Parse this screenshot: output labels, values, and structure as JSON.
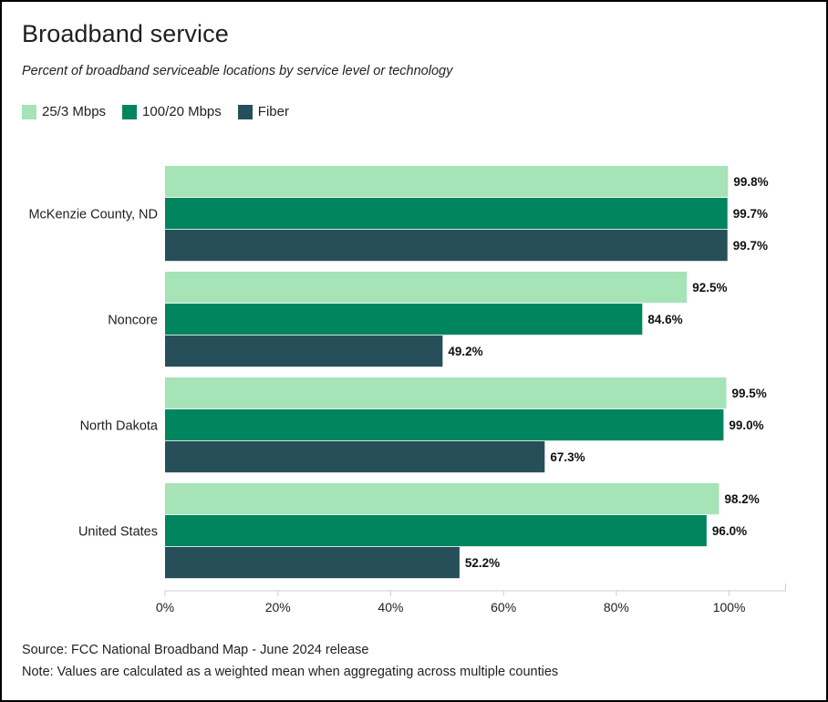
{
  "title": "Broadband service",
  "subtitle": "Percent of broadband serviceable locations by service level or technology",
  "colors": {
    "s25_3": "#a6e3b7",
    "s100_20": "#00855f",
    "fiber": "#264f59",
    "axis": "#cfcfcf"
  },
  "chart_data": {
    "type": "bar",
    "orientation": "horizontal",
    "categories": [
      "McKenzie County, ND",
      "Noncore",
      "North Dakota",
      "United States"
    ],
    "series": [
      {
        "name": "25/3 Mbps",
        "values": [
          99.8,
          92.5,
          99.5,
          98.2
        ],
        "labels": [
          "99.8%",
          "92.5%",
          "99.5%",
          "98.2%"
        ]
      },
      {
        "name": "100/20 Mbps",
        "values": [
          99.7,
          84.6,
          99.0,
          96.0
        ],
        "labels": [
          "99.7%",
          "84.6%",
          "99.0%",
          "96.0%"
        ]
      },
      {
        "name": "Fiber",
        "values": [
          99.7,
          49.2,
          67.3,
          52.2
        ],
        "labels": [
          "99.7%",
          "49.2%",
          "67.3%",
          "52.2%"
        ]
      }
    ],
    "xlim": [
      0,
      110
    ],
    "xticks": [
      0,
      20,
      40,
      60,
      80,
      100
    ],
    "xtick_labels": [
      "0%",
      "20%",
      "40%",
      "60%",
      "80%",
      "100%"
    ],
    "xlabel": "",
    "ylabel": "",
    "grid": false,
    "legend": "top-left"
  },
  "footer": {
    "source": "Source: FCC National Broadband Map - June 2024 release",
    "note": "Note: Values are calculated as a weighted mean when aggregating across multiple counties"
  }
}
